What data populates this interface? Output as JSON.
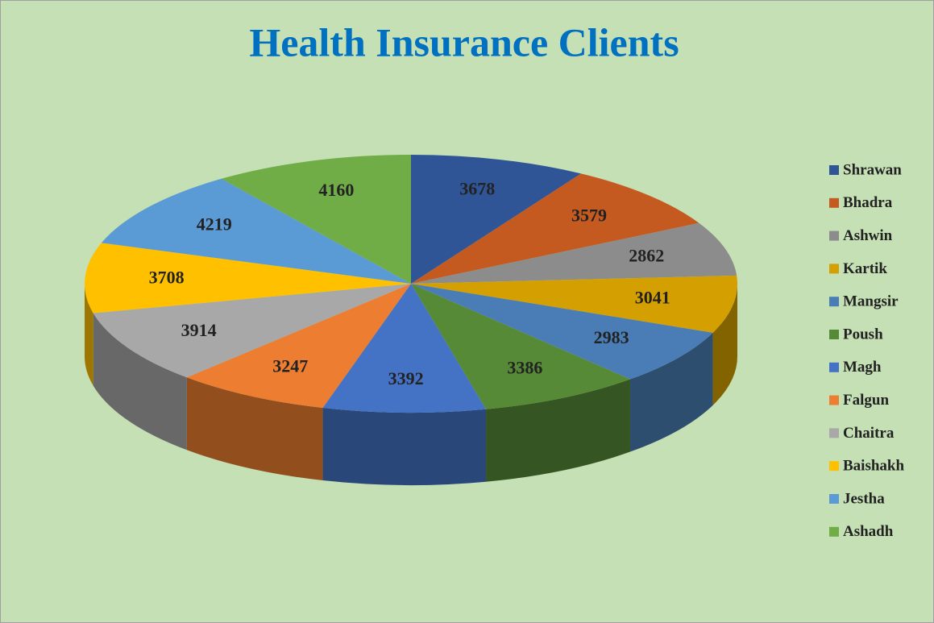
{
  "chart_data": {
    "type": "pie",
    "title": "Health Insurance Clients",
    "categories": [
      "Shrawan",
      "Bhadra",
      "Ashwin",
      "Kartik",
      "Mangsir",
      "Poush",
      "Magh",
      "Falgun",
      "Chaitra",
      "Baishakh",
      "Jestha",
      "Ashadh"
    ],
    "values": [
      3678,
      3579,
      2862,
      3041,
      2983,
      3386,
      3392,
      3247,
      3914,
      3708,
      4219,
      4160
    ],
    "colors": [
      "#2f5597",
      "#c55a21",
      "#8c8c8c",
      "#d49f00",
      "#4a7db5",
      "#568a37",
      "#4472c4",
      "#ed7d31",
      "#a8a8a8",
      "#ffc000",
      "#5b9bd5",
      "#70ad47"
    ],
    "legend": "right"
  }
}
